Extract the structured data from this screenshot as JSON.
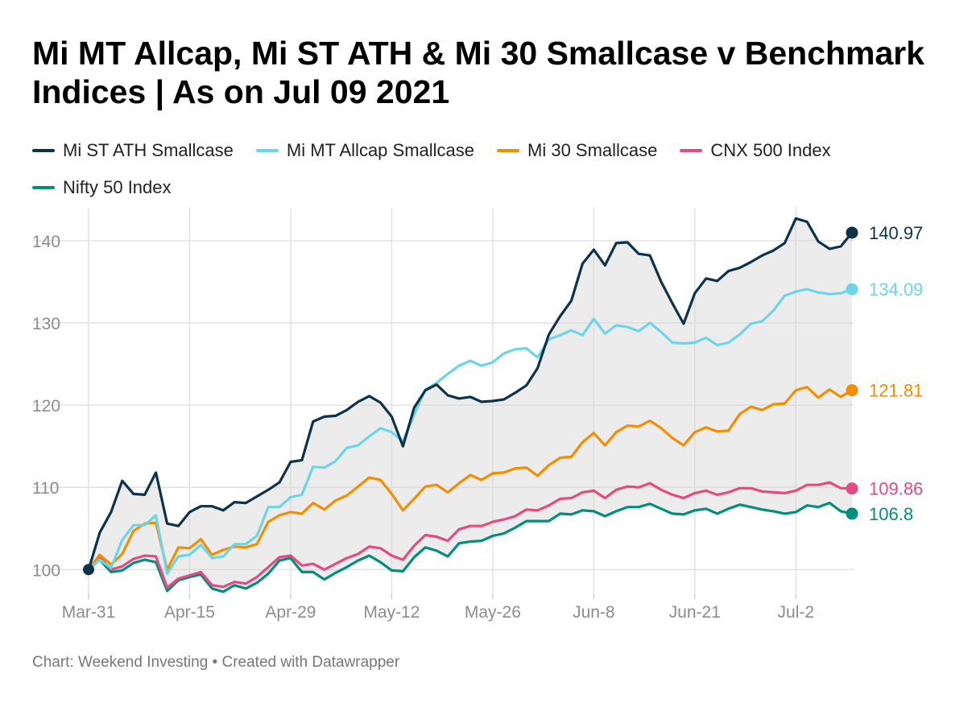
{
  "chart_data": {
    "type": "line",
    "title": "Mi MT Allcap, Mi ST ATH & Mi 30 Smallcase v Benchmark Indices  |  As on Jul 09 2021",
    "xlabel": "",
    "ylabel": "",
    "ylim": [
      97,
      144
    ],
    "yticks": [
      100,
      110,
      120,
      130,
      140
    ],
    "xtick_labels": [
      "Mar-31",
      "Apr-15",
      "Apr-29",
      "May-12",
      "May-26",
      "Jun-8",
      "Jun-21",
      "Jul-2"
    ],
    "x": [
      "Mar-31",
      "Apr-1",
      "Apr-5",
      "Apr-6",
      "Apr-7",
      "Apr-8",
      "Apr-9",
      "Apr-12",
      "Apr-13",
      "Apr-15",
      "Apr-16",
      "Apr-19",
      "Apr-20",
      "Apr-22",
      "Apr-23",
      "Apr-26",
      "Apr-27",
      "Apr-28",
      "Apr-29",
      "Apr-30",
      "May-3",
      "May-4",
      "May-5",
      "May-6",
      "May-7",
      "May-10",
      "May-11",
      "May-12",
      "May-14",
      "May-17",
      "May-18",
      "May-19",
      "May-20",
      "May-21",
      "May-24",
      "May-25",
      "May-26",
      "May-27",
      "May-28",
      "May-31",
      "Jun-1",
      "Jun-2",
      "Jun-3",
      "Jun-4",
      "Jun-7",
      "Jun-8",
      "Jun-9",
      "Jun-10",
      "Jun-11",
      "Jun-14",
      "Jun-15",
      "Jun-16",
      "Jun-17",
      "Jun-18",
      "Jun-21",
      "Jun-22",
      "Jun-23",
      "Jun-24",
      "Jun-25",
      "Jun-28",
      "Jun-29",
      "Jun-30",
      "Jul-1",
      "Jul-2",
      "Jul-5",
      "Jul-6",
      "Jul-7",
      "Jul-8",
      "Jul-9"
    ],
    "series": [
      {
        "name": "Mi ST ATH Smallcase",
        "color": "#0d3249",
        "values": [
          100,
          104.5,
          107,
          110.8,
          109.2,
          109.1,
          111.8,
          105.6,
          105.3,
          107,
          107.7,
          107.7,
          107.2,
          108.2,
          108.1,
          108.9,
          109.7,
          110.6,
          113.1,
          113.3,
          118,
          118.6,
          118.7,
          119.4,
          120.4,
          121.1,
          120.3,
          118.6,
          115,
          119.7,
          121.8,
          122.5,
          121.2,
          120.8,
          121,
          120.4,
          120.5,
          120.7,
          121.5,
          122.4,
          124.5,
          128.6,
          130.8,
          132.7,
          137.2,
          138.9,
          137,
          139.7,
          139.8,
          138.4,
          138.2,
          135,
          132.4,
          129.9,
          133.6,
          135.4,
          135.1,
          136.3,
          136.7,
          137.4,
          138.2,
          138.8,
          139.7,
          142.7,
          142.3,
          139.9,
          139,
          139.3,
          140.97
        ]
      },
      {
        "name": "Mi MT Allcap Smallcase",
        "color": "#6cd5e8",
        "values": [
          100,
          101.2,
          100.2,
          103.6,
          105.4,
          105.4,
          106.6,
          99.5,
          101.6,
          101.8,
          103,
          101.4,
          101.6,
          103.1,
          103.1,
          104.1,
          107.6,
          107.6,
          108.8,
          109.1,
          112.5,
          112.4,
          113.2,
          114.8,
          115.1,
          116.2,
          117.2,
          116.7,
          115.6,
          118.8,
          121.9,
          122.7,
          123.8,
          124.8,
          125.4,
          124.8,
          125.2,
          126.3,
          126.8,
          126.9,
          125.8,
          128,
          128.5,
          129.1,
          128.5,
          130.5,
          128.7,
          129.7,
          129.5,
          129,
          130,
          128.9,
          127.6,
          127.5,
          127.6,
          128.2,
          127.3,
          127.6,
          128.6,
          129.9,
          130.2,
          131.5,
          133.3,
          133.8,
          134.1,
          133.7,
          133.5,
          133.6,
          134.09
        ]
      },
      {
        "name": "Mi 30 Smallcase",
        "color": "#f28e00",
        "values": [
          100,
          101.8,
          100.6,
          101.9,
          104.7,
          105.6,
          105.7,
          100,
          102.7,
          102.6,
          103.7,
          101.8,
          102.4,
          102.8,
          102.7,
          103.1,
          105.8,
          106.6,
          107,
          106.8,
          108.1,
          107.3,
          108.4,
          109,
          110.1,
          111.2,
          110.9,
          109.2,
          107.2,
          108.6,
          110.1,
          110.3,
          109.4,
          110.5,
          111.5,
          110.9,
          111.7,
          111.8,
          112.3,
          112.4,
          111.4,
          112.7,
          113.6,
          113.7,
          115.5,
          116.6,
          115.1,
          116.7,
          117.5,
          117.4,
          118.1,
          117.2,
          116,
          115.1,
          116.7,
          117.3,
          116.8,
          116.9,
          118.9,
          119.8,
          119.4,
          120.1,
          120.2,
          121.8,
          122.2,
          120.9,
          121.9,
          121,
          121.81
        ]
      },
      {
        "name": "CNX 500 Index",
        "color": "#e54a80",
        "values": [
          100,
          101.5,
          100,
          100.4,
          101.3,
          101.7,
          101.6,
          97.8,
          98.9,
          99.3,
          99.7,
          98.1,
          97.9,
          98.5,
          98.3,
          99.1,
          100.3,
          101.5,
          101.7,
          100.5,
          100.7,
          100,
          100.7,
          101.4,
          101.9,
          102.8,
          102.6,
          101.7,
          101.2,
          102.9,
          104.2,
          104,
          103.5,
          104.9,
          105.3,
          105.3,
          105.8,
          106.1,
          106.5,
          107.3,
          107.2,
          107.8,
          108.6,
          108.7,
          109.4,
          109.6,
          108.7,
          109.7,
          110.1,
          110,
          110.5,
          109.7,
          109.1,
          108.7,
          109.3,
          109.6,
          109.1,
          109.4,
          109.9,
          109.9,
          109.5,
          109.4,
          109.3,
          109.6,
          110.3,
          110.3,
          110.6,
          109.9,
          109.86
        ]
      },
      {
        "name": "Nifty 50 Index",
        "color": "#008f7a",
        "values": [
          100,
          101.2,
          99.7,
          99.9,
          100.8,
          101.2,
          100.9,
          97.4,
          98.7,
          99.1,
          99.4,
          97.7,
          97.3,
          98.1,
          97.7,
          98.4,
          99.5,
          101.1,
          101.4,
          99.7,
          99.7,
          98.8,
          99.6,
          100.3,
          101.1,
          101.7,
          100.9,
          99.9,
          99.8,
          101.5,
          102.7,
          102.3,
          101.6,
          103.2,
          103.4,
          103.5,
          104.1,
          104.4,
          105.1,
          105.9,
          105.9,
          105.9,
          106.8,
          106.7,
          107.2,
          107.1,
          106.5,
          107.1,
          107.6,
          107.6,
          108,
          107.4,
          106.8,
          106.7,
          107.2,
          107.4,
          106.8,
          107.4,
          107.9,
          107.6,
          107.3,
          107.1,
          106.8,
          107,
          107.8,
          107.6,
          108.1,
          107.1,
          106.8
        ]
      }
    ],
    "end_labels": [
      "140.97",
      "134.09",
      "121.81",
      "109.86",
      "106.8"
    ],
    "band_between": [
      "Mi ST ATH Smallcase",
      "Nifty 50 Index"
    ],
    "grid": true,
    "legend_position": "top-left"
  },
  "title": "Mi MT Allcap, Mi ST ATH & Mi 30 Smallcase v Benchmark Indices  |  As on Jul 09 2021",
  "footer": "Chart: Weekend Investing • Created with Datawrapper",
  "colors": {
    "grid": "#e2e2e2",
    "band": "#d5d5d5",
    "axis_text": "#8c8c8c"
  }
}
